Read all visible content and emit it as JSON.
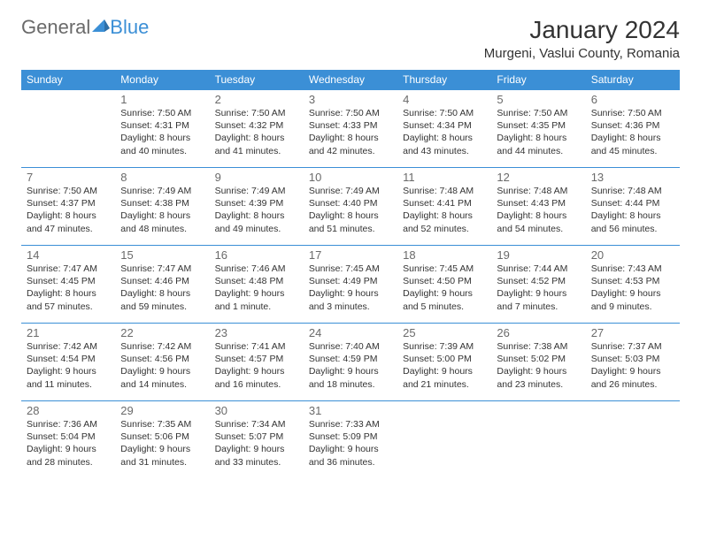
{
  "logo": {
    "part1": "General",
    "part2": "Blue"
  },
  "title": "January 2024",
  "location": "Murgeni, Vaslui County, Romania",
  "colors": {
    "header_bg": "#3b8fd6",
    "header_text": "#ffffff",
    "border": "#3b8fd6",
    "day_num": "#6a6a6a",
    "body_text": "#333333",
    "background": "#ffffff",
    "logo_gray": "#6a6a6a",
    "logo_blue": "#3b8fd6"
  },
  "weekdays": [
    "Sunday",
    "Monday",
    "Tuesday",
    "Wednesday",
    "Thursday",
    "Friday",
    "Saturday"
  ],
  "weeks": [
    [
      null,
      {
        "num": "1",
        "sunrise": "Sunrise: 7:50 AM",
        "sunset": "Sunset: 4:31 PM",
        "day1": "Daylight: 8 hours",
        "day2": "and 40 minutes."
      },
      {
        "num": "2",
        "sunrise": "Sunrise: 7:50 AM",
        "sunset": "Sunset: 4:32 PM",
        "day1": "Daylight: 8 hours",
        "day2": "and 41 minutes."
      },
      {
        "num": "3",
        "sunrise": "Sunrise: 7:50 AM",
        "sunset": "Sunset: 4:33 PM",
        "day1": "Daylight: 8 hours",
        "day2": "and 42 minutes."
      },
      {
        "num": "4",
        "sunrise": "Sunrise: 7:50 AM",
        "sunset": "Sunset: 4:34 PM",
        "day1": "Daylight: 8 hours",
        "day2": "and 43 minutes."
      },
      {
        "num": "5",
        "sunrise": "Sunrise: 7:50 AM",
        "sunset": "Sunset: 4:35 PM",
        "day1": "Daylight: 8 hours",
        "day2": "and 44 minutes."
      },
      {
        "num": "6",
        "sunrise": "Sunrise: 7:50 AM",
        "sunset": "Sunset: 4:36 PM",
        "day1": "Daylight: 8 hours",
        "day2": "and 45 minutes."
      }
    ],
    [
      {
        "num": "7",
        "sunrise": "Sunrise: 7:50 AM",
        "sunset": "Sunset: 4:37 PM",
        "day1": "Daylight: 8 hours",
        "day2": "and 47 minutes."
      },
      {
        "num": "8",
        "sunrise": "Sunrise: 7:49 AM",
        "sunset": "Sunset: 4:38 PM",
        "day1": "Daylight: 8 hours",
        "day2": "and 48 minutes."
      },
      {
        "num": "9",
        "sunrise": "Sunrise: 7:49 AM",
        "sunset": "Sunset: 4:39 PM",
        "day1": "Daylight: 8 hours",
        "day2": "and 49 minutes."
      },
      {
        "num": "10",
        "sunrise": "Sunrise: 7:49 AM",
        "sunset": "Sunset: 4:40 PM",
        "day1": "Daylight: 8 hours",
        "day2": "and 51 minutes."
      },
      {
        "num": "11",
        "sunrise": "Sunrise: 7:48 AM",
        "sunset": "Sunset: 4:41 PM",
        "day1": "Daylight: 8 hours",
        "day2": "and 52 minutes."
      },
      {
        "num": "12",
        "sunrise": "Sunrise: 7:48 AM",
        "sunset": "Sunset: 4:43 PM",
        "day1": "Daylight: 8 hours",
        "day2": "and 54 minutes."
      },
      {
        "num": "13",
        "sunrise": "Sunrise: 7:48 AM",
        "sunset": "Sunset: 4:44 PM",
        "day1": "Daylight: 8 hours",
        "day2": "and 56 minutes."
      }
    ],
    [
      {
        "num": "14",
        "sunrise": "Sunrise: 7:47 AM",
        "sunset": "Sunset: 4:45 PM",
        "day1": "Daylight: 8 hours",
        "day2": "and 57 minutes."
      },
      {
        "num": "15",
        "sunrise": "Sunrise: 7:47 AM",
        "sunset": "Sunset: 4:46 PM",
        "day1": "Daylight: 8 hours",
        "day2": "and 59 minutes."
      },
      {
        "num": "16",
        "sunrise": "Sunrise: 7:46 AM",
        "sunset": "Sunset: 4:48 PM",
        "day1": "Daylight: 9 hours",
        "day2": "and 1 minute."
      },
      {
        "num": "17",
        "sunrise": "Sunrise: 7:45 AM",
        "sunset": "Sunset: 4:49 PM",
        "day1": "Daylight: 9 hours",
        "day2": "and 3 minutes."
      },
      {
        "num": "18",
        "sunrise": "Sunrise: 7:45 AM",
        "sunset": "Sunset: 4:50 PM",
        "day1": "Daylight: 9 hours",
        "day2": "and 5 minutes."
      },
      {
        "num": "19",
        "sunrise": "Sunrise: 7:44 AM",
        "sunset": "Sunset: 4:52 PM",
        "day1": "Daylight: 9 hours",
        "day2": "and 7 minutes."
      },
      {
        "num": "20",
        "sunrise": "Sunrise: 7:43 AM",
        "sunset": "Sunset: 4:53 PM",
        "day1": "Daylight: 9 hours",
        "day2": "and 9 minutes."
      }
    ],
    [
      {
        "num": "21",
        "sunrise": "Sunrise: 7:42 AM",
        "sunset": "Sunset: 4:54 PM",
        "day1": "Daylight: 9 hours",
        "day2": "and 11 minutes."
      },
      {
        "num": "22",
        "sunrise": "Sunrise: 7:42 AM",
        "sunset": "Sunset: 4:56 PM",
        "day1": "Daylight: 9 hours",
        "day2": "and 14 minutes."
      },
      {
        "num": "23",
        "sunrise": "Sunrise: 7:41 AM",
        "sunset": "Sunset: 4:57 PM",
        "day1": "Daylight: 9 hours",
        "day2": "and 16 minutes."
      },
      {
        "num": "24",
        "sunrise": "Sunrise: 7:40 AM",
        "sunset": "Sunset: 4:59 PM",
        "day1": "Daylight: 9 hours",
        "day2": "and 18 minutes."
      },
      {
        "num": "25",
        "sunrise": "Sunrise: 7:39 AM",
        "sunset": "Sunset: 5:00 PM",
        "day1": "Daylight: 9 hours",
        "day2": "and 21 minutes."
      },
      {
        "num": "26",
        "sunrise": "Sunrise: 7:38 AM",
        "sunset": "Sunset: 5:02 PM",
        "day1": "Daylight: 9 hours",
        "day2": "and 23 minutes."
      },
      {
        "num": "27",
        "sunrise": "Sunrise: 7:37 AM",
        "sunset": "Sunset: 5:03 PM",
        "day1": "Daylight: 9 hours",
        "day2": "and 26 minutes."
      }
    ],
    [
      {
        "num": "28",
        "sunrise": "Sunrise: 7:36 AM",
        "sunset": "Sunset: 5:04 PM",
        "day1": "Daylight: 9 hours",
        "day2": "and 28 minutes."
      },
      {
        "num": "29",
        "sunrise": "Sunrise: 7:35 AM",
        "sunset": "Sunset: 5:06 PM",
        "day1": "Daylight: 9 hours",
        "day2": "and 31 minutes."
      },
      {
        "num": "30",
        "sunrise": "Sunrise: 7:34 AM",
        "sunset": "Sunset: 5:07 PM",
        "day1": "Daylight: 9 hours",
        "day2": "and 33 minutes."
      },
      {
        "num": "31",
        "sunrise": "Sunrise: 7:33 AM",
        "sunset": "Sunset: 5:09 PM",
        "day1": "Daylight: 9 hours",
        "day2": "and 36 minutes."
      },
      null,
      null,
      null
    ]
  ]
}
